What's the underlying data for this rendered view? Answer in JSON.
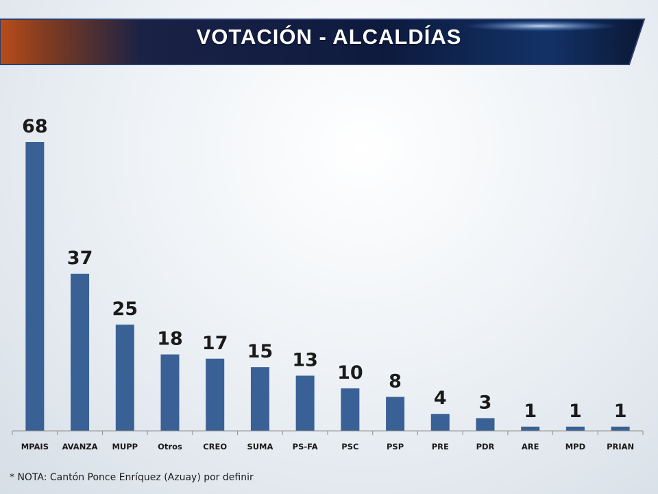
{
  "title": "VOTACIÓN - ALCALDÍAS",
  "note": "* NOTA: Cantón Ponce Enríquez (Azuay) por definir",
  "colors": {
    "bar": "#3a6195",
    "banner_dark": "#0c1a3a",
    "banner_accent": "#c0541a"
  },
  "chart_data": {
    "type": "bar",
    "title": "VOTACIÓN - ALCALDÍAS",
    "categories": [
      "MPAIS",
      "AVANZA",
      "MUPP",
      "Otros",
      "CREO",
      "SUMA",
      "PS-FA",
      "PSC",
      "PSP",
      "PRE",
      "PDR",
      "ARE",
      "MPD",
      "PRIAN"
    ],
    "values": [
      68,
      37,
      25,
      18,
      17,
      15,
      13,
      10,
      8,
      4,
      3,
      1,
      1,
      1
    ],
    "xlabel": "",
    "ylabel": "",
    "ylim": [
      0,
      70
    ],
    "grid": false,
    "data_labels": true
  }
}
